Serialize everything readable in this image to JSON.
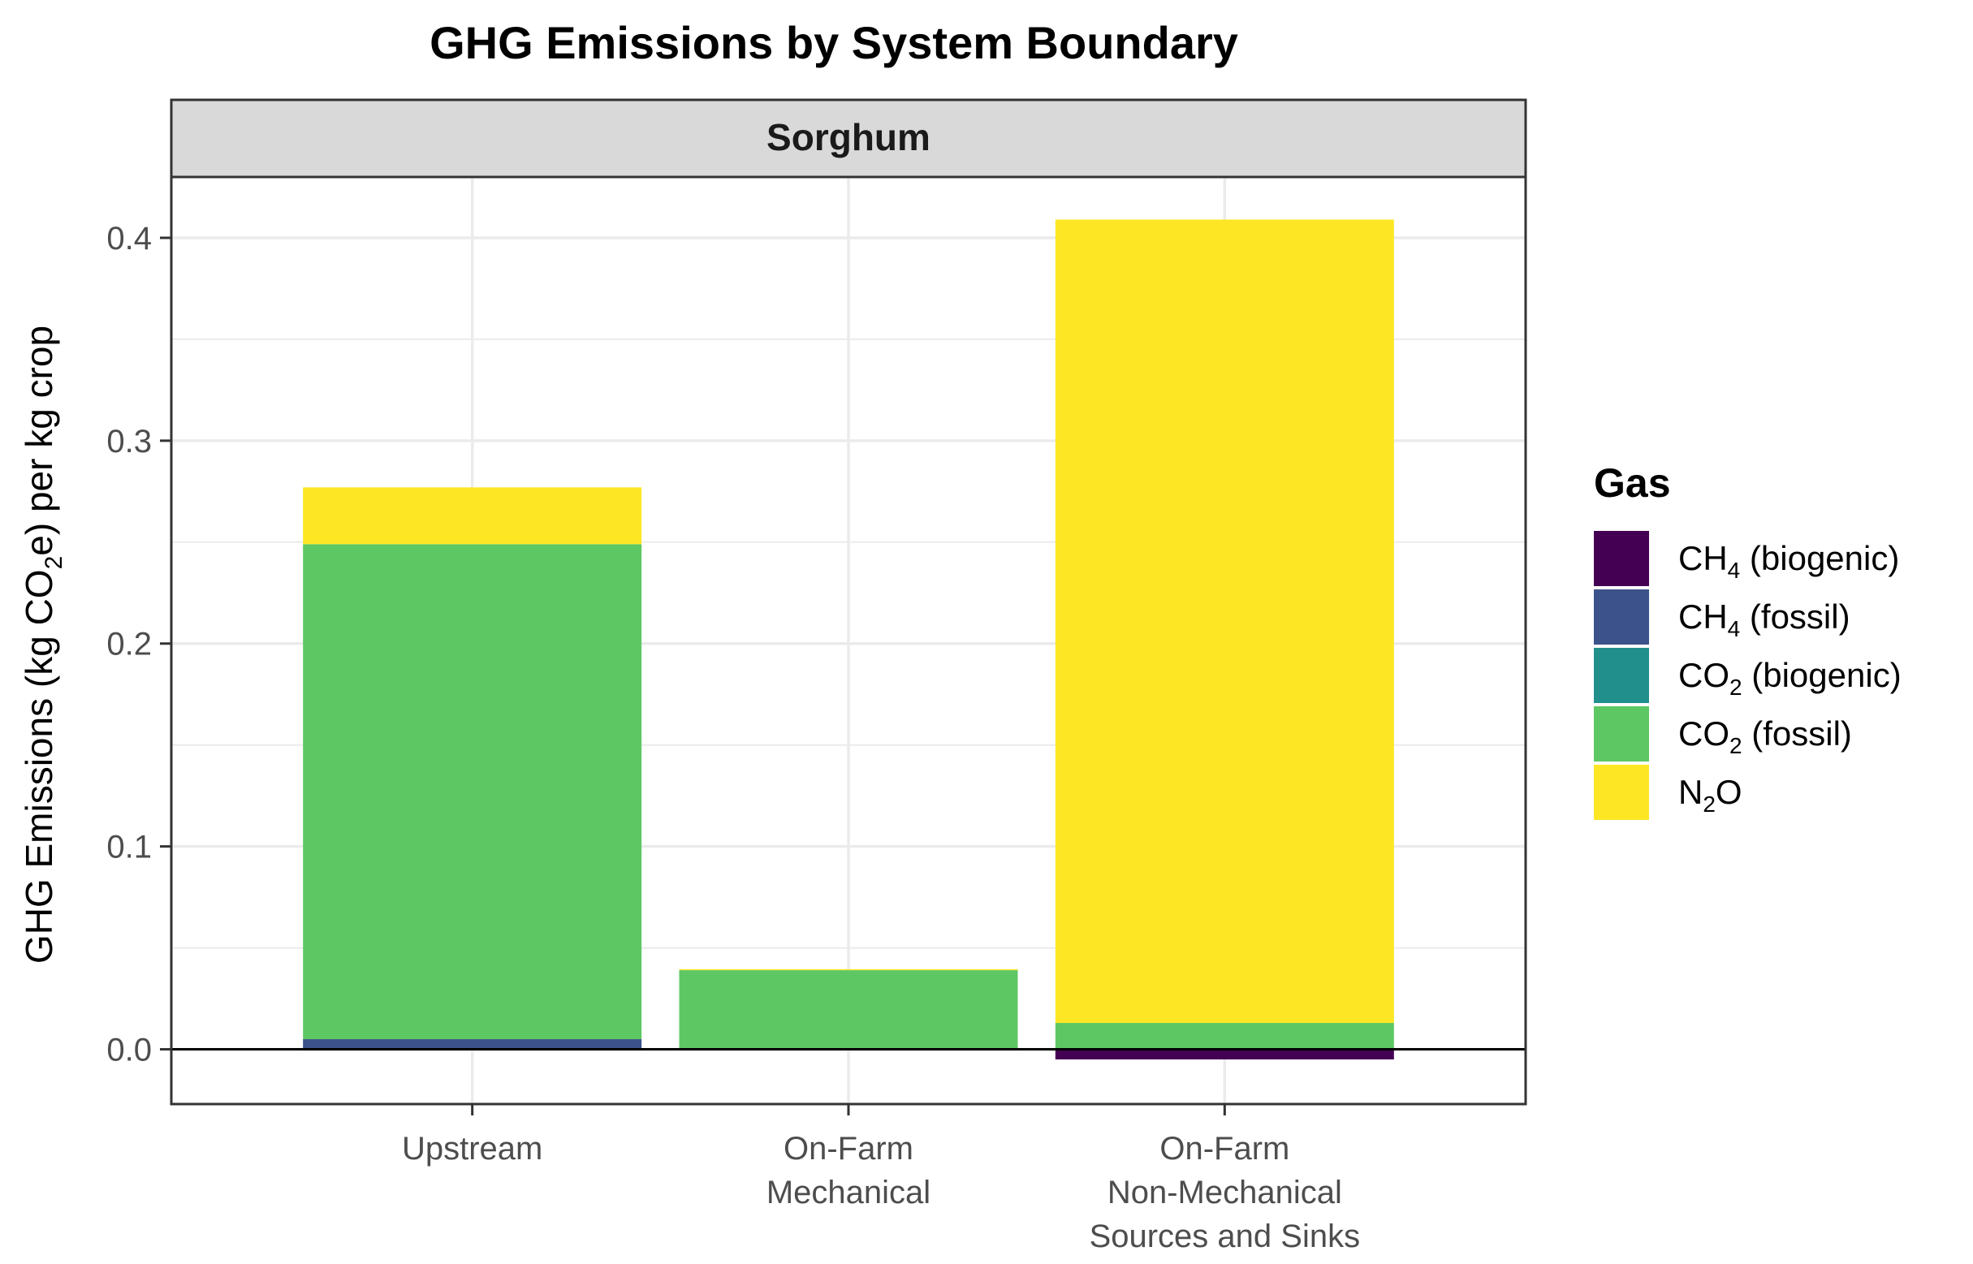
{
  "chart_data": {
    "type": "bar",
    "stacked": true,
    "title": "GHG Emissions by System Boundary",
    "facet_label": "Sorghum",
    "ylabel": "GHG Emissions (kg CO₂e) per kg crop",
    "ylabel_parts": [
      "GHG Emissions (kg CO",
      "2",
      "e) per kg crop"
    ],
    "xlabel": "",
    "ylim": [
      -0.027,
      0.43
    ],
    "y_ticks": [
      0.0,
      0.1,
      0.2,
      0.3,
      0.4
    ],
    "y_tick_labels": [
      "0.0",
      "0.1",
      "0.2",
      "0.3",
      "0.4"
    ],
    "grid": true,
    "zero_line": true,
    "categories": [
      {
        "label": "Upstream",
        "label_lines": [
          "Upstream"
        ]
      },
      {
        "label": "On-Farm Mechanical",
        "label_lines": [
          "On-Farm",
          "Mechanical"
        ]
      },
      {
        "label": "On-Farm Non-Mechanical Sources and Sinks",
        "label_lines": [
          "On-Farm",
          "Non-Mechanical",
          "Sources and Sinks"
        ]
      }
    ],
    "series": [
      {
        "name": "CH4 (biogenic)",
        "legend_base": "CH",
        "legend_sub": "4",
        "legend_rest": " (biogenic)",
        "color": "#440154",
        "values": [
          0.0,
          0.0,
          -0.005
        ]
      },
      {
        "name": "CH4 (fossil)",
        "legend_base": "CH",
        "legend_sub": "4",
        "legend_rest": " (fossil)",
        "color": "#3B528B",
        "values": [
          0.005,
          0.0005,
          0.0
        ]
      },
      {
        "name": "CO2 (biogenic)",
        "legend_base": "CO",
        "legend_sub": "2",
        "legend_rest": " (biogenic)",
        "color": "#21908C",
        "values": [
          0.0,
          0.0,
          0.0
        ]
      },
      {
        "name": "CO2 (fossil)",
        "legend_base": "CO",
        "legend_sub": "2",
        "legend_rest": " (fossil)",
        "color": "#5DC863",
        "values": [
          0.244,
          0.0385,
          0.013
        ]
      },
      {
        "name": "N2O",
        "legend_base": "N",
        "legend_sub": "2",
        "legend_rest": "O",
        "color": "#FDE725",
        "values": [
          0.028,
          0.0005,
          0.396
        ]
      }
    ],
    "legend": {
      "title": "Gas",
      "position": "right"
    }
  }
}
